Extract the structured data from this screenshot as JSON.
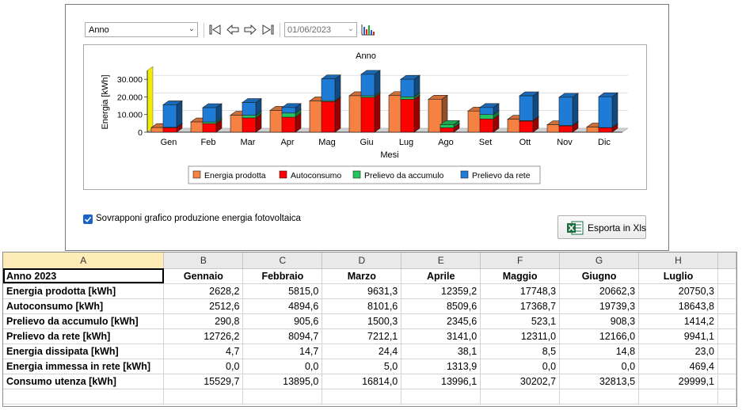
{
  "toolbar": {
    "period_select": "Anno",
    "nav_buttons": [
      "first-icon",
      "prev-icon",
      "next-icon",
      "last-icon"
    ],
    "date_value": "01/06/2023",
    "chart_icon": "bar-chart-icon"
  },
  "options": {
    "overlay_checkbox_label": "Sovrapponi grafico produzione energia fotovoltaica",
    "overlay_checked": true,
    "export_button_label": "Esporta in Xls",
    "export_icon": "excel-icon"
  },
  "chart_data": {
    "type": "bar",
    "title": "Anno",
    "xlabel": "Mesi",
    "ylabel": "Energia [kWh]",
    "ylim": [
      0,
      35000
    ],
    "yticks": [
      "0",
      "10.000",
      "20.000",
      "30.000"
    ],
    "categories": [
      "Gen",
      "Feb",
      "Mar",
      "Apr",
      "Mag",
      "Giu",
      "Lug",
      "Ago",
      "Set",
      "Ott",
      "Nov",
      "Dic"
    ],
    "grid": true,
    "legend_position": "bottom",
    "series": [
      {
        "name": "Energia prodotta",
        "color": "#f58142",
        "values": [
          2628.2,
          5815.0,
          9631.3,
          12359.2,
          17748.3,
          20662.3,
          20750.3,
          18700,
          12000,
          7300,
          4200,
          2900
        ]
      },
      {
        "name": "Autoconsumo",
        "color": "#ff0000",
        "stack": "consumo",
        "values": [
          2512.6,
          4894.6,
          8101.6,
          8509.6,
          17368.7,
          19739.3,
          18643.8,
          2500,
          7500,
          6300,
          3600,
          2500
        ]
      },
      {
        "name": "Prelievo da accumulo",
        "color": "#22c55e",
        "stack": "consumo",
        "values": [
          290.8,
          905.6,
          1500.3,
          2345.6,
          523.1,
          908.3,
          1414.2,
          1800,
          2500,
          300,
          200,
          100
        ]
      },
      {
        "name": "Prelievo da rete",
        "color": "#1e7bd6",
        "stack": "consumo",
        "values": [
          12726.2,
          8094.7,
          7212.1,
          3141.0,
          12311.0,
          12166.0,
          9941.1,
          0,
          4000,
          14000,
          16000,
          17500
        ]
      }
    ]
  },
  "sheet": {
    "column_letters": [
      "A",
      "B",
      "C",
      "D",
      "E",
      "F",
      "G",
      "H"
    ],
    "header_row": [
      "Anno 2023",
      "Gennaio",
      "Febbraio",
      "Marzo",
      "Aprile",
      "Maggio",
      "Giugno",
      "Luglio"
    ],
    "rows": [
      {
        "label": "Energia prodotta [kWh]",
        "values": [
          "2628,2",
          "5815,0",
          "9631,3",
          "12359,2",
          "17748,3",
          "20662,3",
          "20750,3"
        ]
      },
      {
        "label": "Autoconsumo [kWh]",
        "values": [
          "2512,6",
          "4894,6",
          "8101,6",
          "8509,6",
          "17368,7",
          "19739,3",
          "18643,8"
        ]
      },
      {
        "label": "Prelievo da accumulo [kWh]",
        "values": [
          "290,8",
          "905,6",
          "1500,3",
          "2345,6",
          "523,1",
          "908,3",
          "1414,2"
        ]
      },
      {
        "label": "Prelievo da rete [kWh]",
        "values": [
          "12726,2",
          "8094,7",
          "7212,1",
          "3141,0",
          "12311,0",
          "12166,0",
          "9941,1"
        ]
      },
      {
        "label": "Energia dissipata [kWh]",
        "values": [
          "4,7",
          "14,7",
          "24,4",
          "38,1",
          "8,5",
          "14,8",
          "23,0"
        ]
      },
      {
        "label": "Energia immessa in rete [kWh]",
        "values": [
          "0,0",
          "0,0",
          "5,0",
          "1313,9",
          "0,0",
          "0,0",
          "469,4"
        ]
      },
      {
        "label": "Consumo utenza [kWh]",
        "values": [
          "15529,7",
          "13895,0",
          "16814,0",
          "13996,1",
          "30202,7",
          "32813,5",
          "29999,1"
        ]
      }
    ]
  }
}
